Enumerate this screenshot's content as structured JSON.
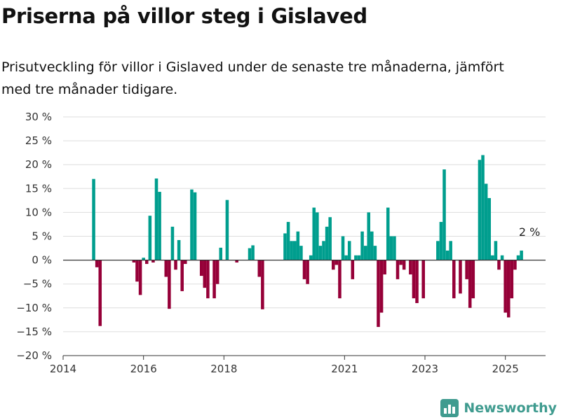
{
  "page": {
    "title": "Priserna på villor steg i Gislaved",
    "subtitle": "Prisutveckling för villor i Gislaved under de senaste tre månaderna, jämfört med tre månader tidigare.",
    "brand": "Newsworthy",
    "brand_icon": "bar-chart-logo-icon"
  },
  "chart_data": {
    "type": "bar",
    "title": "Priserna på villor steg i Gislaved",
    "subtitle": "Prisutveckling för villor i Gislaved under de senaste tre månaderna, jämfört med tre månader tidigare.",
    "xlabel": "",
    "ylabel": "",
    "x_unit": "year (decimal)",
    "y_unit": "%",
    "ylim": [
      -20,
      30
    ],
    "yticks": [
      30,
      25,
      20,
      15,
      10,
      5,
      0,
      -5,
      -10,
      -15,
      -20
    ],
    "ytick_labels": [
      "30 %",
      "25 %",
      "20 %",
      "15 %",
      "10 %",
      "5 %",
      "0 %",
      "−5 %",
      "−10 %",
      "−15 %",
      "−20 %"
    ],
    "xlim": [
      2014.0,
      2026.0
    ],
    "xticks": [
      2014,
      2016,
      2018,
      2021,
      2023,
      2025
    ],
    "xtick_labels": [
      "2014",
      "2016",
      "2018",
      "2021",
      "2023",
      "2025"
    ],
    "grid": "horizontal",
    "colors": {
      "positive": "#009e8e",
      "negative": "#960038",
      "axis": "#333333",
      "grid": "#dddddd"
    },
    "annotation": {
      "label": "2 %",
      "x": 2025.6,
      "y": 2
    },
    "bars": [
      {
        "x": 2014.76,
        "y": 17
      },
      {
        "x": 2014.84,
        "y": -1.5
      },
      {
        "x": 2014.92,
        "y": -13.8
      },
      {
        "x": 2015.76,
        "y": -0.5
      },
      {
        "x": 2015.84,
        "y": -4.5
      },
      {
        "x": 2015.92,
        "y": -7.3
      },
      {
        "x": 2016.0,
        "y": 0.5
      },
      {
        "x": 2016.08,
        "y": -0.8
      },
      {
        "x": 2016.16,
        "y": 9.3
      },
      {
        "x": 2016.24,
        "y": -0.5
      },
      {
        "x": 2016.32,
        "y": 17.1
      },
      {
        "x": 2016.4,
        "y": 14.3
      },
      {
        "x": 2016.56,
        "y": -3.5
      },
      {
        "x": 2016.64,
        "y": -10.2
      },
      {
        "x": 2016.72,
        "y": 7
      },
      {
        "x": 2016.8,
        "y": -2
      },
      {
        "x": 2016.88,
        "y": 4.2
      },
      {
        "x": 2016.96,
        "y": -6.5
      },
      {
        "x": 2017.04,
        "y": -0.8
      },
      {
        "x": 2017.2,
        "y": 14.8
      },
      {
        "x": 2017.28,
        "y": 14.2
      },
      {
        "x": 2017.44,
        "y": -3.3
      },
      {
        "x": 2017.52,
        "y": -5.8
      },
      {
        "x": 2017.6,
        "y": -8
      },
      {
        "x": 2017.76,
        "y": -8
      },
      {
        "x": 2017.84,
        "y": -5
      },
      {
        "x": 2017.92,
        "y": 2.6
      },
      {
        "x": 2018.08,
        "y": 12.6
      },
      {
        "x": 2018.32,
        "y": -0.5
      },
      {
        "x": 2018.64,
        "y": 2.5
      },
      {
        "x": 2018.72,
        "y": 3.1
      },
      {
        "x": 2018.88,
        "y": -3.5
      },
      {
        "x": 2018.96,
        "y": -10.3
      },
      {
        "x": 2019.52,
        "y": 5.6
      },
      {
        "x": 2019.6,
        "y": 8
      },
      {
        "x": 2019.68,
        "y": 4
      },
      {
        "x": 2019.76,
        "y": 4
      },
      {
        "x": 2019.84,
        "y": 6
      },
      {
        "x": 2019.92,
        "y": 3
      },
      {
        "x": 2020.0,
        "y": -4
      },
      {
        "x": 2020.08,
        "y": -5
      },
      {
        "x": 2020.16,
        "y": 1
      },
      {
        "x": 2020.24,
        "y": 11
      },
      {
        "x": 2020.32,
        "y": 10
      },
      {
        "x": 2020.4,
        "y": 3
      },
      {
        "x": 2020.48,
        "y": 4
      },
      {
        "x": 2020.56,
        "y": 7
      },
      {
        "x": 2020.64,
        "y": 9
      },
      {
        "x": 2020.72,
        "y": -2
      },
      {
        "x": 2020.8,
        "y": -1
      },
      {
        "x": 2020.88,
        "y": -8
      },
      {
        "x": 2020.96,
        "y": 5
      },
      {
        "x": 2021.04,
        "y": 1
      },
      {
        "x": 2021.12,
        "y": 4
      },
      {
        "x": 2021.2,
        "y": -4
      },
      {
        "x": 2021.28,
        "y": 1
      },
      {
        "x": 2021.36,
        "y": 1
      },
      {
        "x": 2021.44,
        "y": 6
      },
      {
        "x": 2021.52,
        "y": 3
      },
      {
        "x": 2021.6,
        "y": 10
      },
      {
        "x": 2021.68,
        "y": 6
      },
      {
        "x": 2021.76,
        "y": 3
      },
      {
        "x": 2021.84,
        "y": -14
      },
      {
        "x": 2021.92,
        "y": -11
      },
      {
        "x": 2022.0,
        "y": -3
      },
      {
        "x": 2022.08,
        "y": 11
      },
      {
        "x": 2022.16,
        "y": 5
      },
      {
        "x": 2022.24,
        "y": 5
      },
      {
        "x": 2022.32,
        "y": -4
      },
      {
        "x": 2022.4,
        "y": -1
      },
      {
        "x": 2022.48,
        "y": -2
      },
      {
        "x": 2022.64,
        "y": -3
      },
      {
        "x": 2022.72,
        "y": -8
      },
      {
        "x": 2022.8,
        "y": -9
      },
      {
        "x": 2022.96,
        "y": -8
      },
      {
        "x": 2023.32,
        "y": 4
      },
      {
        "x": 2023.4,
        "y": 8
      },
      {
        "x": 2023.48,
        "y": 19
      },
      {
        "x": 2023.56,
        "y": 2
      },
      {
        "x": 2023.64,
        "y": 4
      },
      {
        "x": 2023.72,
        "y": -8
      },
      {
        "x": 2023.88,
        "y": -7
      },
      {
        "x": 2024.04,
        "y": -4
      },
      {
        "x": 2024.12,
        "y": -10
      },
      {
        "x": 2024.2,
        "y": -8
      },
      {
        "x": 2024.36,
        "y": 21
      },
      {
        "x": 2024.44,
        "y": 22
      },
      {
        "x": 2024.52,
        "y": 16
      },
      {
        "x": 2024.6,
        "y": 13
      },
      {
        "x": 2024.68,
        "y": 1
      },
      {
        "x": 2024.76,
        "y": 4
      },
      {
        "x": 2024.84,
        "y": -2
      },
      {
        "x": 2024.92,
        "y": 1
      },
      {
        "x": 2025.0,
        "y": -11
      },
      {
        "x": 2025.08,
        "y": -12
      },
      {
        "x": 2025.16,
        "y": -8
      },
      {
        "x": 2025.24,
        "y": -2
      },
      {
        "x": 2025.32,
        "y": 1
      },
      {
        "x": 2025.4,
        "y": 2
      }
    ]
  }
}
